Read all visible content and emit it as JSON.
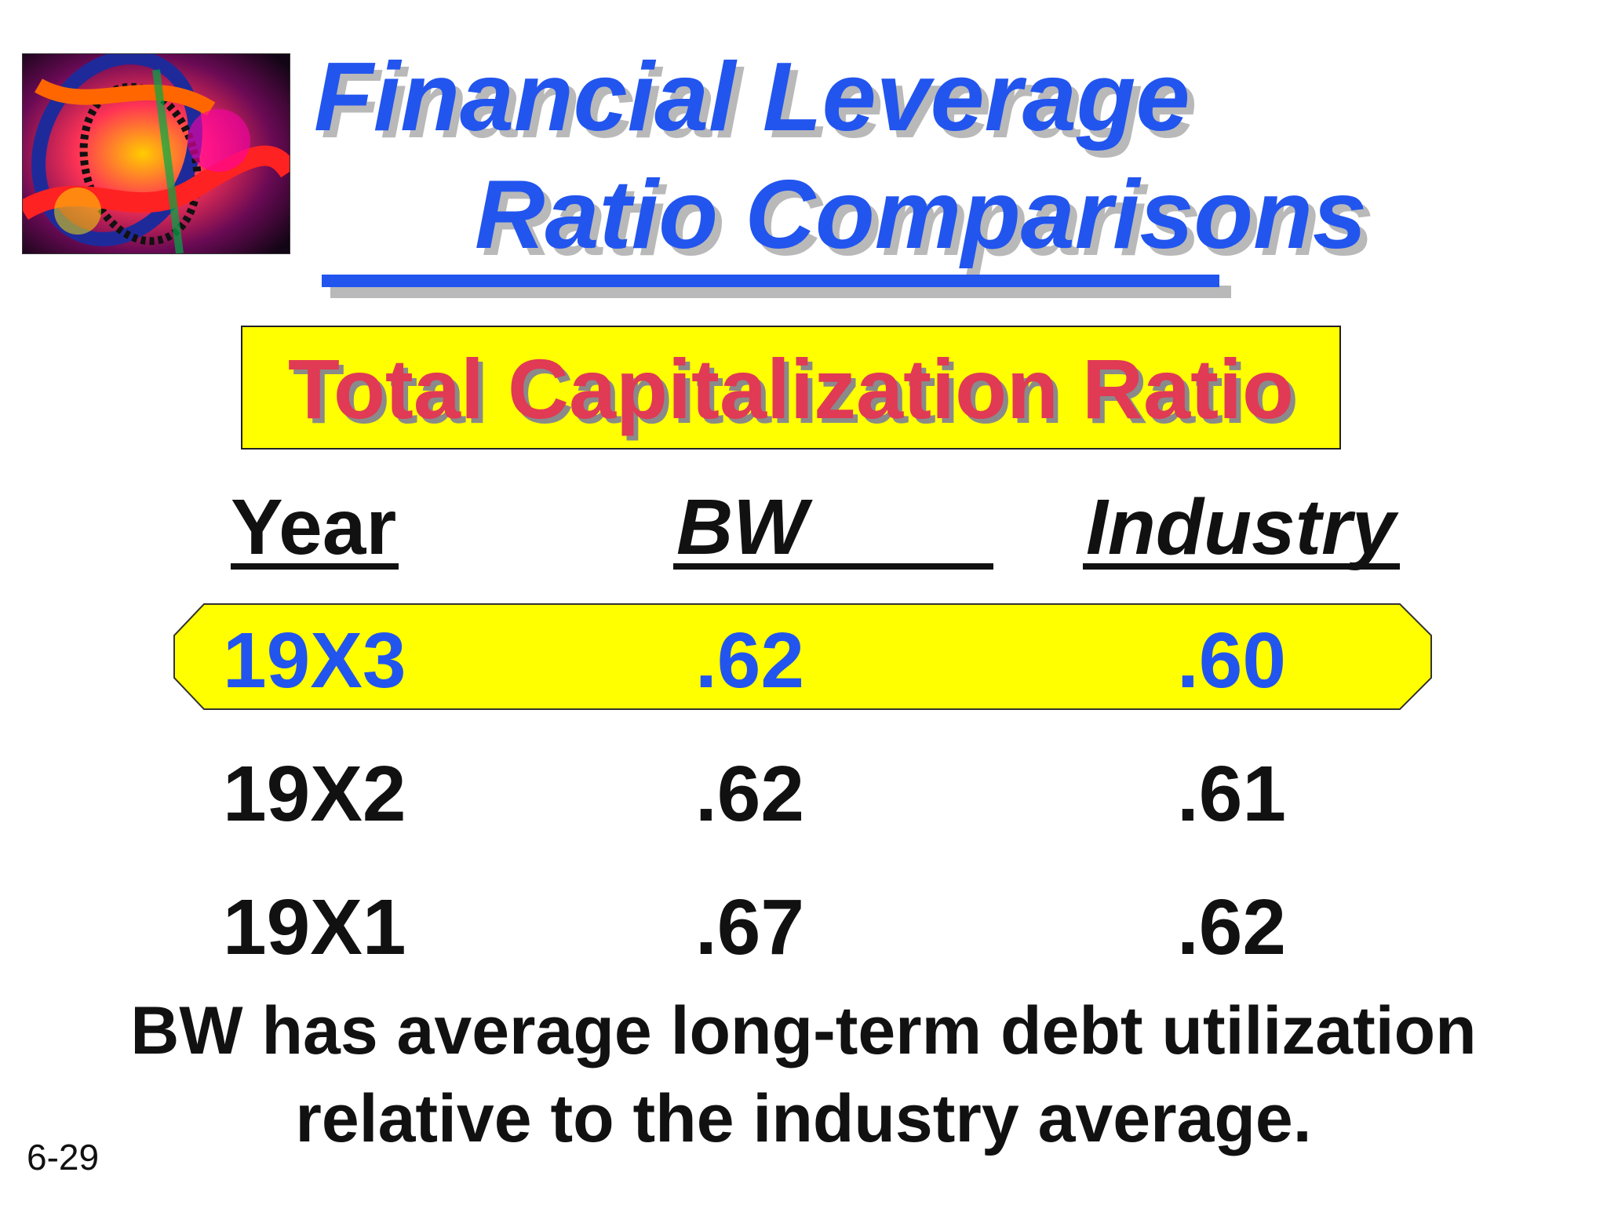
{
  "slide": {
    "title_line1": "Financial Leverage",
    "title_line2": "Ratio Comparisons",
    "subtitle": "Total Capitalization Ratio",
    "columns": {
      "year": "Year",
      "bw": "BW",
      "industry": "Industry"
    },
    "rows": [
      {
        "year": "19X3",
        "bw": ".62",
        "industry": ".60"
      },
      {
        "year": "19X2",
        "bw": ".62",
        "industry": ".61"
      },
      {
        "year": "19X1",
        "bw": ".67",
        "industry": ".62"
      }
    ],
    "conclusion_line1": "BW has average long-term debt utilization",
    "conclusion_line2": "relative to the industry average.",
    "page_number": "6-29"
  },
  "colors": {
    "title_blue": "#2255ee",
    "subtitle_red": "#e03a55",
    "highlight_yellow": "#ffff00"
  },
  "icons": {
    "logo": "abstract-gears-logo"
  }
}
